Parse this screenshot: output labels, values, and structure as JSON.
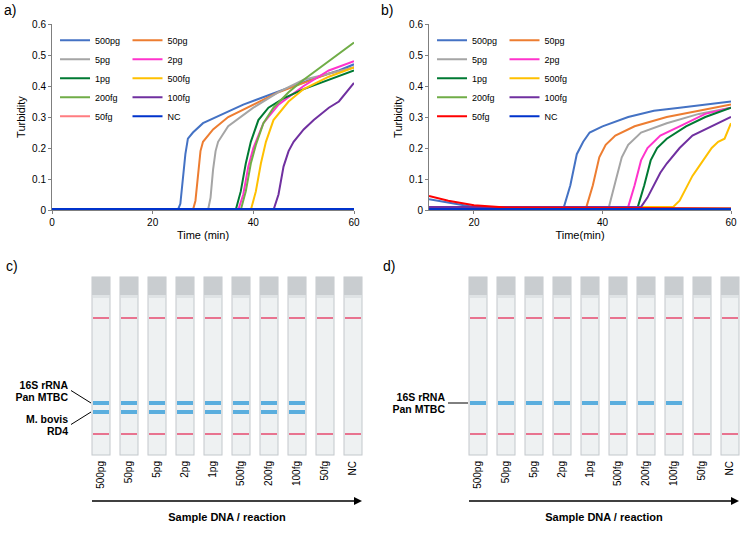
{
  "chart_data": [
    {
      "panel": "a)",
      "type": "line",
      "x_label": "Time (min)",
      "y_label": "Turbidity",
      "xlim": [
        0,
        60
      ],
      "xticks": [
        0,
        20,
        40,
        60
      ],
      "ylim": [
        0,
        0.6
      ],
      "yticks": [
        0,
        0.1,
        0.2,
        0.3,
        0.4,
        0.5,
        0.6
      ],
      "grid": false,
      "legend": "upper left",
      "series": [
        {
          "name": "500pg",
          "color": "#4472c4",
          "x": [
            0,
            25,
            25.5,
            26,
            26.5,
            27,
            28,
            30,
            34,
            38,
            43,
            48,
            53,
            57,
            60
          ],
          "values": [
            0,
            0,
            0.02,
            0.1,
            0.18,
            0.23,
            0.25,
            0.28,
            0.31,
            0.34,
            0.37,
            0.4,
            0.43,
            0.45,
            0.47
          ]
        },
        {
          "name": "50pg",
          "color": "#ed7d31",
          "x": [
            0,
            28,
            28.5,
            29,
            29.5,
            30,
            32,
            35,
            40,
            45,
            50,
            55,
            60
          ],
          "values": [
            0,
            0,
            0.03,
            0.12,
            0.19,
            0.22,
            0.26,
            0.3,
            0.34,
            0.38,
            0.41,
            0.44,
            0.46
          ]
        },
        {
          "name": "5pg",
          "color": "#a5a5a5",
          "x": [
            0,
            31,
            31.5,
            32,
            32.5,
            33,
            35,
            40,
            45,
            50,
            55,
            60
          ],
          "values": [
            0,
            0,
            0.04,
            0.13,
            0.19,
            0.22,
            0.27,
            0.33,
            0.38,
            0.42,
            0.44,
            0.46
          ]
        },
        {
          "name": "2pg",
          "color": "#ff33cc",
          "x": [
            0,
            37,
            38,
            39,
            40,
            42,
            45,
            50,
            55,
            60
          ],
          "values": [
            0,
            0,
            0.05,
            0.14,
            0.2,
            0.28,
            0.34,
            0.4,
            0.45,
            0.48
          ]
        },
        {
          "name": "1pg",
          "color": "#007a33",
          "x": [
            0,
            36.5,
            37.5,
            38.5,
            39.5,
            41,
            43,
            46,
            50,
            55,
            60
          ],
          "values": [
            0,
            0,
            0.06,
            0.15,
            0.22,
            0.29,
            0.33,
            0.36,
            0.39,
            0.42,
            0.45
          ]
        },
        {
          "name": "500fg",
          "color": "#ffc000",
          "x": [
            0,
            39.5,
            40.5,
            41.5,
            42.5,
            44,
            47,
            50,
            55,
            60
          ],
          "values": [
            0,
            0,
            0.06,
            0.15,
            0.22,
            0.29,
            0.35,
            0.39,
            0.43,
            0.46
          ]
        },
        {
          "name": "200fg",
          "color": "#70ad47",
          "x": [
            0,
            37.5,
            38.5,
            39.5,
            40.5,
            42,
            44,
            47,
            50,
            55,
            60
          ],
          "values": [
            0,
            0,
            0.06,
            0.15,
            0.21,
            0.28,
            0.33,
            0.38,
            0.42,
            0.48,
            0.54
          ]
        },
        {
          "name": "100fg",
          "color": "#7030a0",
          "x": [
            0,
            44,
            45,
            46,
            47,
            48,
            50,
            52,
            55,
            57,
            60
          ],
          "values": [
            0,
            0,
            0.05,
            0.14,
            0.19,
            0.22,
            0.26,
            0.29,
            0.33,
            0.35,
            0.41
          ]
        },
        {
          "name": "50fg",
          "color": "#ff7c80",
          "x": [
            0,
            60
          ],
          "values": [
            0.003,
            0.003
          ]
        },
        {
          "name": "NC",
          "color": "#0033cc",
          "x": [
            0,
            60
          ],
          "values": [
            0.003,
            0.003
          ]
        }
      ]
    },
    {
      "panel": "b)",
      "type": "line",
      "x_label": "Time(min)",
      "y_label": "Turbidity",
      "xlim": [
        13,
        60
      ],
      "xticks": [
        20,
        40,
        60
      ],
      "ylim": [
        0,
        0.6
      ],
      "yticks": [
        0,
        0.1,
        0.2,
        0.3,
        0.4,
        0.5,
        0.6
      ],
      "grid": false,
      "legend": "upper left",
      "series": [
        {
          "name": "500pg",
          "color": "#4472c4",
          "x": [
            13,
            16,
            20,
            34,
            35,
            36,
            37,
            38,
            40,
            44,
            48,
            52,
            56,
            60
          ],
          "values": [
            0.035,
            0.025,
            0.01,
            0.01,
            0.08,
            0.18,
            0.22,
            0.25,
            0.27,
            0.3,
            0.32,
            0.33,
            0.34,
            0.35
          ]
        },
        {
          "name": "50pg",
          "color": "#ed7d31",
          "x": [
            13,
            20,
            37.5,
            38.5,
            39.5,
            40.5,
            42,
            45,
            50,
            55,
            60
          ],
          "values": [
            0.01,
            0.01,
            0.01,
            0.08,
            0.17,
            0.21,
            0.24,
            0.27,
            0.3,
            0.32,
            0.34
          ]
        },
        {
          "name": "5pg",
          "color": "#a5a5a5",
          "x": [
            13,
            20,
            41,
            42,
            43,
            44,
            46,
            50,
            55,
            60
          ],
          "values": [
            0.01,
            0.01,
            0.01,
            0.09,
            0.17,
            0.21,
            0.25,
            0.28,
            0.31,
            0.33
          ]
        },
        {
          "name": "2pg",
          "color": "#ff33cc",
          "x": [
            13,
            20,
            44,
            45,
            46,
            47,
            49,
            52,
            56,
            60
          ],
          "values": [
            0.01,
            0.01,
            0.01,
            0.08,
            0.16,
            0.2,
            0.24,
            0.27,
            0.31,
            0.33
          ]
        },
        {
          "name": "1pg",
          "color": "#007a33",
          "x": [
            13,
            20,
            45.5,
            46.5,
            47.5,
            48.5,
            50,
            53,
            56,
            60
          ],
          "values": [
            0.01,
            0.01,
            0.01,
            0.08,
            0.16,
            0.2,
            0.23,
            0.27,
            0.3,
            0.33
          ]
        },
        {
          "name": "500fg",
          "color": "#ffc000",
          "x": [
            13,
            20,
            51,
            52,
            53,
            54,
            55,
            56,
            57,
            58,
            59,
            60
          ],
          "values": [
            0.01,
            0.01,
            0.01,
            0.03,
            0.07,
            0.11,
            0.14,
            0.17,
            0.2,
            0.22,
            0.23,
            0.28
          ]
        },
        {
          "name": "200fg",
          "color": "#70ad47",
          "x": [
            13,
            60
          ],
          "values": [
            0.005,
            0.005
          ]
        },
        {
          "name": "100fg",
          "color": "#7030a0",
          "x": [
            13,
            20,
            46,
            47,
            48,
            49,
            50,
            52,
            54,
            56,
            58,
            60
          ],
          "values": [
            0.01,
            0.01,
            0.01,
            0.04,
            0.08,
            0.12,
            0.15,
            0.2,
            0.24,
            0.26,
            0.28,
            0.3
          ]
        },
        {
          "name": "50fg",
          "color": "#ff0000",
          "x": [
            13,
            16,
            20,
            25,
            60
          ],
          "values": [
            0.045,
            0.03,
            0.015,
            0.008,
            0.005
          ]
        },
        {
          "name": "NC",
          "color": "#0033cc",
          "x": [
            13,
            60
          ],
          "values": [
            0.003,
            0.003
          ]
        }
      ]
    }
  ],
  "strip_panels": [
    {
      "panel": "c)",
      "x_label": "Sample DNA / reaction",
      "lanes": [
        "500pg",
        "50pg",
        "5pg",
        "2pg",
        "1pg",
        "500fg",
        "200fg",
        "100fg",
        "50fg",
        "NC"
      ],
      "control_color": "#e8738f",
      "control": [
        true,
        true,
        true,
        true,
        true,
        true,
        true,
        true,
        true,
        true
      ],
      "bands": [
        {
          "label": "16S rRNA Pan MTBC",
          "color": "#5aaede",
          "present": [
            true,
            true,
            true,
            true,
            true,
            true,
            true,
            true,
            false,
            false
          ]
        },
        {
          "label": "M. bovis RD4",
          "color": "#5aaede",
          "present": [
            true,
            true,
            true,
            true,
            true,
            true,
            true,
            true,
            false,
            false
          ]
        }
      ]
    },
    {
      "panel": "d)",
      "x_label": "Sample DNA / reaction",
      "lanes": [
        "500pg",
        "50pg",
        "5pg",
        "2pg",
        "1pg",
        "500fg",
        "200fg",
        "100fg",
        "50fg",
        "NC"
      ],
      "control_color": "#e8738f",
      "control": [
        true,
        true,
        true,
        true,
        true,
        true,
        true,
        true,
        true,
        true
      ],
      "bands": [
        {
          "label": "16S rRNA Pan MTBC",
          "color": "#5aaede",
          "present": [
            true,
            true,
            true,
            true,
            true,
            true,
            true,
            true,
            false,
            false
          ]
        }
      ]
    }
  ]
}
